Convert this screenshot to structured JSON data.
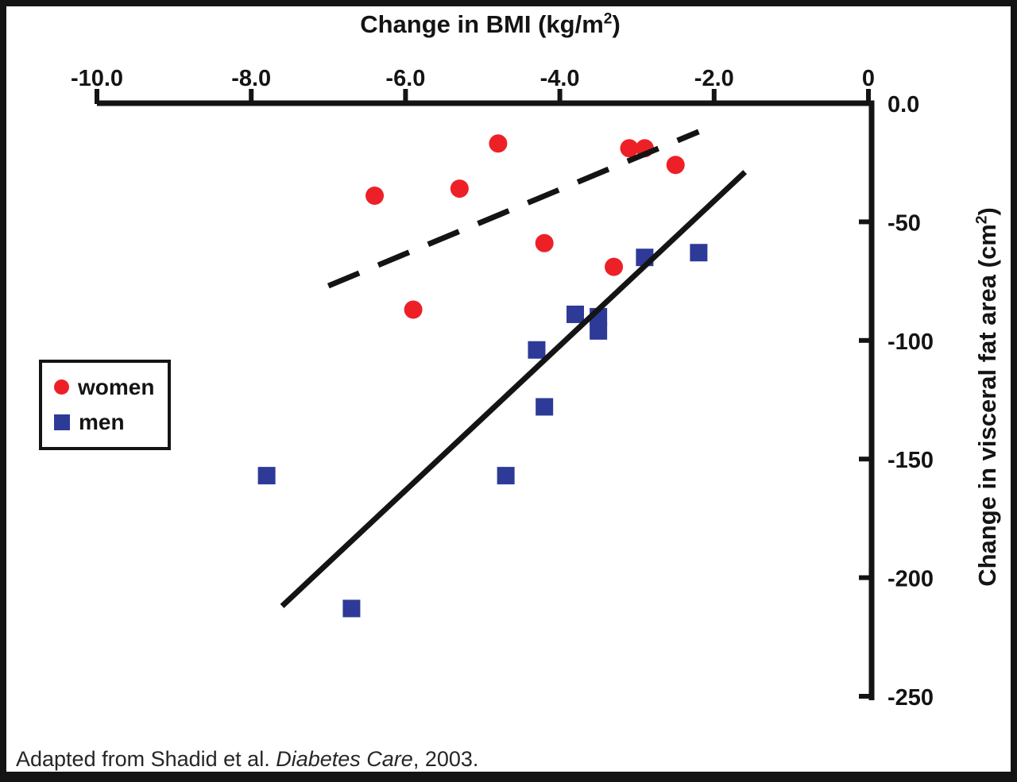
{
  "figure": {
    "caption": {
      "prefix": "Adapted from Shadid et al. ",
      "italic": "Diabetes Care",
      "suffix": ", 2003."
    }
  },
  "chart_data": {
    "type": "scatter",
    "title": {
      "pre": "Change in BMI (kg/m",
      "sup": "2",
      "post": ")"
    },
    "xlabel": "Change in BMI (kg/m2)",
    "ylabel": {
      "pre": "Change in visceral fat area (cm",
      "sup": "2",
      "post": ")"
    },
    "x_axis": {
      "position": "top",
      "range": [
        -10.0,
        0
      ],
      "ticks": [
        -10,
        -8,
        -6,
        -4,
        -2,
        0
      ],
      "tick_labels": [
        "-10.0",
        "-8.0",
        "-6.0",
        "-4.0",
        "-2.0",
        "0"
      ]
    },
    "y_axis": {
      "position": "right",
      "range": [
        0,
        -250
      ],
      "ticks": [
        0,
        -50,
        -100,
        -150,
        -200,
        -250
      ],
      "tick_labels": [
        "0.0",
        "-50",
        "-100",
        "-150",
        "-200",
        "-250"
      ]
    },
    "grid": false,
    "series": [
      {
        "name": "women",
        "marker": "circle",
        "color": "#ed2028",
        "points": [
          [
            -6.4,
            -39
          ],
          [
            -5.9,
            -87
          ],
          [
            -5.3,
            -36
          ],
          [
            -4.8,
            -17
          ],
          [
            -4.2,
            -59
          ],
          [
            -3.3,
            -69
          ],
          [
            -3.1,
            -19
          ],
          [
            -2.9,
            -19
          ],
          [
            -2.5,
            -26
          ]
        ]
      },
      {
        "name": "men",
        "marker": "square",
        "color": "#2e3a97",
        "points": [
          [
            -7.8,
            -157
          ],
          [
            -6.7,
            -213
          ],
          [
            -4.7,
            -157
          ],
          [
            -4.3,
            -104
          ],
          [
            -4.2,
            -128
          ],
          [
            -3.8,
            -89
          ],
          [
            -3.5,
            -90
          ],
          [
            -3.5,
            -96
          ],
          [
            -2.9,
            -65
          ],
          [
            -2.2,
            -63
          ]
        ]
      }
    ],
    "trend_lines": [
      {
        "series": "women",
        "style": "dashed",
        "color": "#141414",
        "from": [
          -7.0,
          -77
        ],
        "to": [
          -2.2,
          -12
        ]
      },
      {
        "series": "men",
        "style": "solid",
        "color": "#141414",
        "from": [
          -7.6,
          -212
        ],
        "to": [
          -1.6,
          -29
        ]
      }
    ],
    "legend": {
      "position": "middle-left",
      "entries": [
        {
          "label": "women",
          "marker": "circle",
          "color": "#ed2028"
        },
        {
          "label": "men",
          "marker": "square",
          "color": "#2e3a97"
        }
      ]
    }
  }
}
